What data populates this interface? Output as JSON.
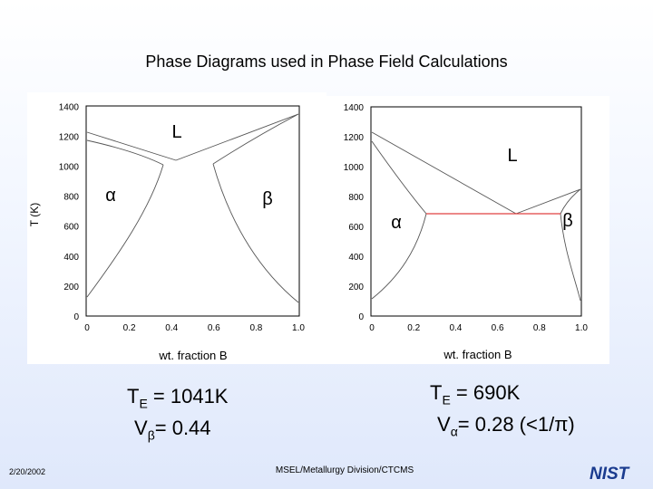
{
  "slide": {
    "title": "Phase Diagrams used in Phase Field Calculations",
    "date": "2/20/2002",
    "footer": "MSEL/Metallurgy Division/CTCMS",
    "logo_text": "NIST",
    "logo_color": "#1a3b8f"
  },
  "diagram_left": {
    "ylabel": "T (K)",
    "xlabel": "wt. fraction B",
    "y_ticks": [
      "0",
      "200",
      "400",
      "600",
      "800",
      "1000",
      "1200",
      "1400"
    ],
    "x_ticks": [
      "0",
      "0.2",
      "0.4",
      "0.6",
      "0.8",
      "1.0"
    ],
    "phase_liquid": "L",
    "phase_alpha": "α",
    "phase_beta": "β",
    "result_T_sym": "T",
    "result_T_sub": "E",
    "result_T_val": " = 1041K",
    "result_V_sym": "V",
    "result_V_sub": "β",
    "result_V_val": "= 0.44"
  },
  "diagram_right": {
    "xlabel": "wt. fraction B",
    "y_ticks": [
      "0",
      "200",
      "400",
      "600",
      "800",
      "1000",
      "1200",
      "1400"
    ],
    "x_ticks": [
      "0",
      "0.2",
      "0.4",
      "0.6",
      "0.8",
      "1.0"
    ],
    "phase_liquid": "L",
    "phase_alpha": "α",
    "phase_beta": "β",
    "eutectic_line_color": "#e04040",
    "result_T_sym": "T",
    "result_T_sub": "E",
    "result_T_val": " = 690K",
    "result_V_sym": "V",
    "result_V_sub": "α",
    "result_V_val": "= 0.28 (<1/π)"
  }
}
